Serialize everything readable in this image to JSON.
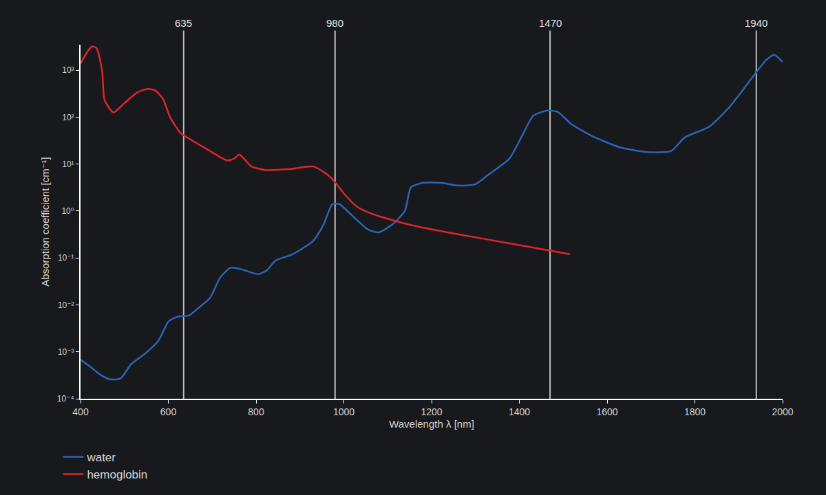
{
  "chart_data": {
    "type": "line",
    "x_label": "Wavelength λ [nm]",
    "y_label": "Absorption coefficient [cm⁻¹]",
    "log": "y",
    "grid": false,
    "legend": "bottom left",
    "xlim": [
      400,
      2000
    ],
    "xticks": [
      400,
      600,
      800,
      1000,
      1200,
      1400,
      1600,
      1800,
      2000
    ],
    "ylim": [
      0.0001,
      3500
    ],
    "yticks": [
      {
        "value": 0.0001,
        "label": "10⁻⁴"
      },
      {
        "value": 0.001,
        "label": "10⁻³"
      },
      {
        "value": 0.01,
        "label": "10⁻²"
      },
      {
        "value": 0.1,
        "label": "10⁻¹"
      },
      {
        "value": 1,
        "label": "10⁰"
      },
      {
        "value": 10,
        "label": "10¹"
      },
      {
        "value": 100,
        "label": "10²"
      },
      {
        "value": 1000,
        "label": "10³"
      }
    ],
    "vertical_lines": [
      635,
      980,
      1470,
      1940
    ],
    "series": [
      {
        "name": "water",
        "color": "#2a64b8",
        "x": [
          400,
          425,
          444,
          467,
          491,
          515,
          546,
          577,
          601,
          621,
          648,
          671,
          695,
          718,
          742,
          765,
          805,
          825,
          844,
          883,
          930,
          954,
          974,
          990,
          1024,
          1056,
          1079,
          1111,
          1139,
          1153,
          1181,
          1220,
          1260,
          1299,
          1330,
          1377,
          1409,
          1432,
          1464,
          1487,
          1518,
          1565,
          1628,
          1691,
          1746,
          1777,
          1832,
          1879,
          1926,
          1962,
          1981,
          2000
        ],
        "values": [
          0.00068,
          0.00046,
          0.00033,
          0.00026,
          0.00027,
          0.00054,
          0.0009,
          0.0017,
          0.0045,
          0.0056,
          0.006,
          0.009,
          0.014,
          0.038,
          0.062,
          0.058,
          0.045,
          0.055,
          0.087,
          0.12,
          0.23,
          0.52,
          1.4,
          1.4,
          0.72,
          0.4,
          0.35,
          0.52,
          1,
          3.2,
          4,
          4,
          3.5,
          3.7,
          6,
          13,
          45,
          108,
          138,
          130,
          72,
          40,
          23,
          18,
          19,
          37,
          62,
          165,
          610,
          1630,
          2130,
          1500
        ]
      },
      {
        "name": "hemoglobin",
        "color": "#e0242a",
        "x": [
          400,
          425,
          436,
          449,
          455,
          475,
          499,
          530,
          554,
          570,
          588,
          604,
          627,
          637,
          687,
          734,
          750,
          762,
          789,
          820,
          875,
          930,
          954,
          974,
          1001,
          1032,
          1079,
          1158,
          1236,
          1315,
          1426,
          1515
        ],
        "values": [
          1400,
          3160,
          3000,
          1000,
          230,
          126,
          195,
          340,
          400,
          370,
          245,
          100,
          47,
          40,
          21,
          12,
          13,
          16,
          9,
          7.5,
          7.8,
          8.9,
          6.8,
          4.8,
          2.3,
          1.2,
          0.78,
          0.49,
          0.35,
          0.26,
          0.17,
          0.12
        ]
      }
    ]
  }
}
